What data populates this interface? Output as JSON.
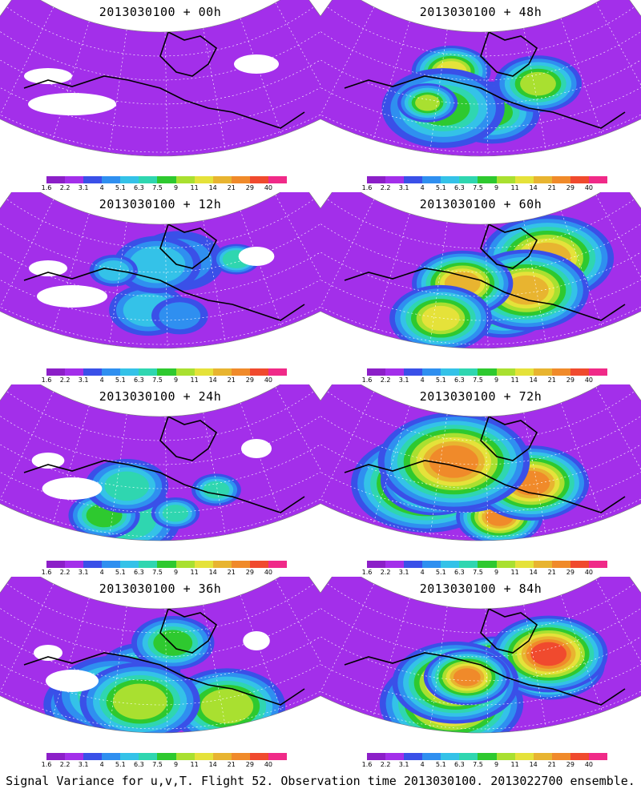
{
  "caption": "Signal Variance for u,v,T. Flight 52. Observation time 2013030100. 2013022700 ensemble.",
  "colorbar": {
    "ticks": [
      "1.6",
      "2.2",
      "3.1",
      "4",
      "5.1",
      "6.3",
      "7.5",
      "9",
      "11",
      "14",
      "21",
      "29",
      "40"
    ],
    "colors": [
      "#8c1fc8",
      "#a32fea",
      "#3a50e8",
      "#2f8ff0",
      "#34c2e8",
      "#2fd6b0",
      "#2ec92f",
      "#a9e030",
      "#e5e23a",
      "#e8b430",
      "#f08a2a",
      "#f04a2e",
      "#f02a88"
    ]
  },
  "panels": [
    {
      "title": "2013030100 + 00h",
      "level": 0.1
    },
    {
      "title": "2013030100 + 48h",
      "level": 0.62
    },
    {
      "title": "2013030100 + 12h",
      "level": 0.3
    },
    {
      "title": "2013030100 + 60h",
      "level": 0.72
    },
    {
      "title": "2013030100 + 24h",
      "level": 0.42
    },
    {
      "title": "2013030100 + 72h",
      "level": 0.82
    },
    {
      "title": "2013030100 + 36h",
      "level": 0.5
    },
    {
      "title": "2013030100 + 84h",
      "level": 0.88
    }
  ]
}
